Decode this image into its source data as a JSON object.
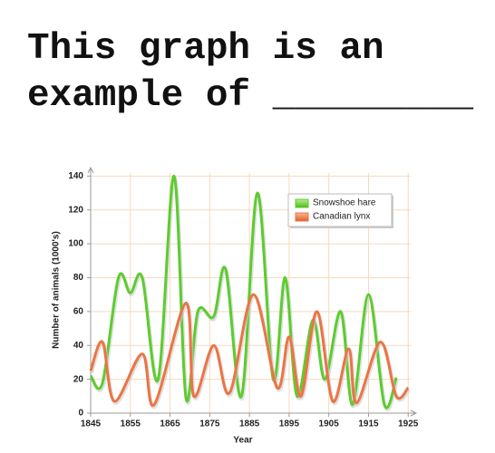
{
  "heading": "This graph is an example of _________",
  "chart_data": {
    "type": "line",
    "xlabel": "Year",
    "ylabel": "Number of animals (1000's)",
    "xlim": [
      1845,
      1927
    ],
    "ylim": [
      0,
      145
    ],
    "xticks": [
      1845,
      1855,
      1865,
      1875,
      1885,
      1895,
      1905,
      1915,
      1925
    ],
    "yticks": [
      0,
      20,
      40,
      60,
      80,
      100,
      120,
      140
    ],
    "grid": true,
    "legend": "upper right",
    "series": [
      {
        "name": "Snowshoe hare",
        "color": "#5ccc2e",
        "x": [
          1845,
          1848,
          1852,
          1855,
          1858,
          1862,
          1866,
          1869,
          1872,
          1876,
          1879,
          1883,
          1887,
          1891,
          1894,
          1897,
          1901,
          1904,
          1908,
          1911,
          1915,
          1919,
          1922
        ],
        "values": [
          22,
          18,
          80,
          71,
          80,
          20,
          140,
          9,
          60,
          57,
          85,
          10,
          130,
          20,
          80,
          10,
          55,
          20,
          60,
          5,
          70,
          5,
          21
        ]
      },
      {
        "name": "Canadian lynx",
        "color": "#ec7444",
        "x": [
          1845,
          1848,
          1851,
          1858,
          1861,
          1869,
          1871,
          1876,
          1880,
          1886,
          1892,
          1895,
          1898,
          1902,
          1906,
          1910,
          1912,
          1918,
          1922,
          1925
        ],
        "values": [
          25,
          42,
          7,
          35,
          5,
          65,
          10,
          40,
          12,
          70,
          15,
          45,
          10,
          60,
          7,
          38,
          6,
          42,
          10,
          15
        ]
      }
    ]
  }
}
